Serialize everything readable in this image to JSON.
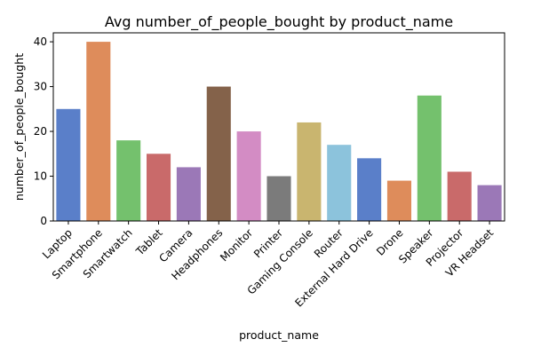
{
  "chart_data": {
    "type": "bar",
    "title": "Avg number_of_people_bought by product_name",
    "xlabel": "product_name",
    "ylabel": "number_of_people_bought",
    "ylim": [
      0,
      42
    ],
    "yticks": [
      0,
      10,
      20,
      30,
      40
    ],
    "grid": false,
    "categories": [
      "Laptop",
      "Smartphone",
      "Smartwatch",
      "Tablet",
      "Camera",
      "Headphones",
      "Monitor",
      "Printer",
      "Gaming Console",
      "Router",
      "External Hard Drive",
      "Drone",
      "Speaker",
      "Projector",
      "VR Headset"
    ],
    "values": [
      25,
      40,
      18,
      15,
      12,
      30,
      20,
      10,
      22,
      17,
      14,
      9,
      28,
      11,
      8
    ],
    "colors": [
      "#5a7fc9",
      "#de8c5b",
      "#74c16d",
      "#c96a6a",
      "#9b78b7",
      "#84624a",
      "#d38cc4",
      "#7b7b7b",
      "#c9b56f",
      "#8cc3dc",
      "#5a7fc9",
      "#de8c5b",
      "#74c16d",
      "#c96a6a",
      "#9b78b7"
    ]
  }
}
